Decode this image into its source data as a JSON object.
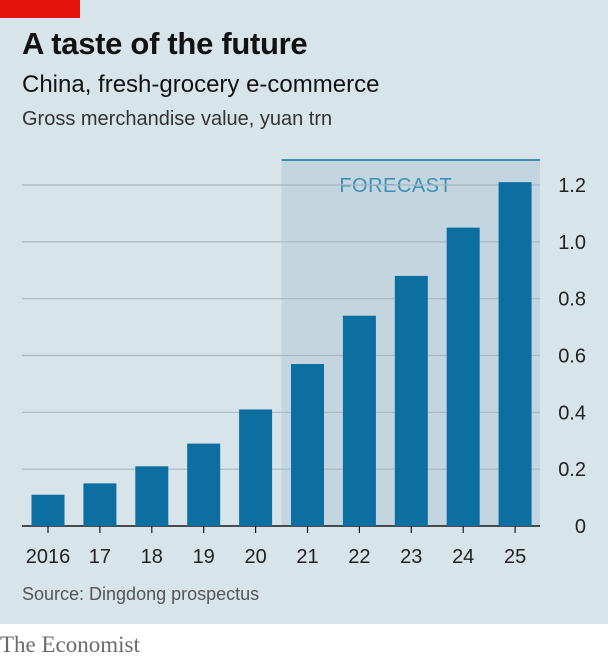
{
  "header": {
    "title": "A taste of the future",
    "subtitle": "China, fresh-grocery e-commerce",
    "unit": "Gross merchandise value, yuan trn"
  },
  "footer": {
    "source": "Source: Dingdong prospectus",
    "brand": "The Economist"
  },
  "colors": {
    "bar": "#0d6ea1",
    "panel": "#d7e4ea",
    "forecast_band": "#c3d6e0",
    "forecast_text": "#3f8fb5",
    "gridline": "#a9b7bf",
    "accent": "#e3120b"
  },
  "chart_data": {
    "type": "bar",
    "categories": [
      "2016",
      "17",
      "18",
      "19",
      "20",
      "21",
      "22",
      "23",
      "24",
      "25"
    ],
    "values": [
      0.11,
      0.15,
      0.21,
      0.29,
      0.41,
      0.57,
      0.74,
      0.88,
      1.05,
      1.21
    ],
    "title": "A taste of the future",
    "subtitle": "China, fresh-grocery e-commerce",
    "ylabel": "Gross merchandise value, yuan trn",
    "ylim": [
      0,
      1.2
    ],
    "yticks": [
      0,
      0.2,
      0.4,
      0.6,
      0.8,
      1.0,
      1.2
    ],
    "ytick_labels": [
      "0",
      "0.2",
      "0.4",
      "0.6",
      "0.8",
      "1.0",
      "1.2"
    ],
    "y_axis_side": "right",
    "grid": true,
    "forecast": {
      "label": "FORECAST",
      "from_category": "21",
      "to_category": "25"
    }
  }
}
